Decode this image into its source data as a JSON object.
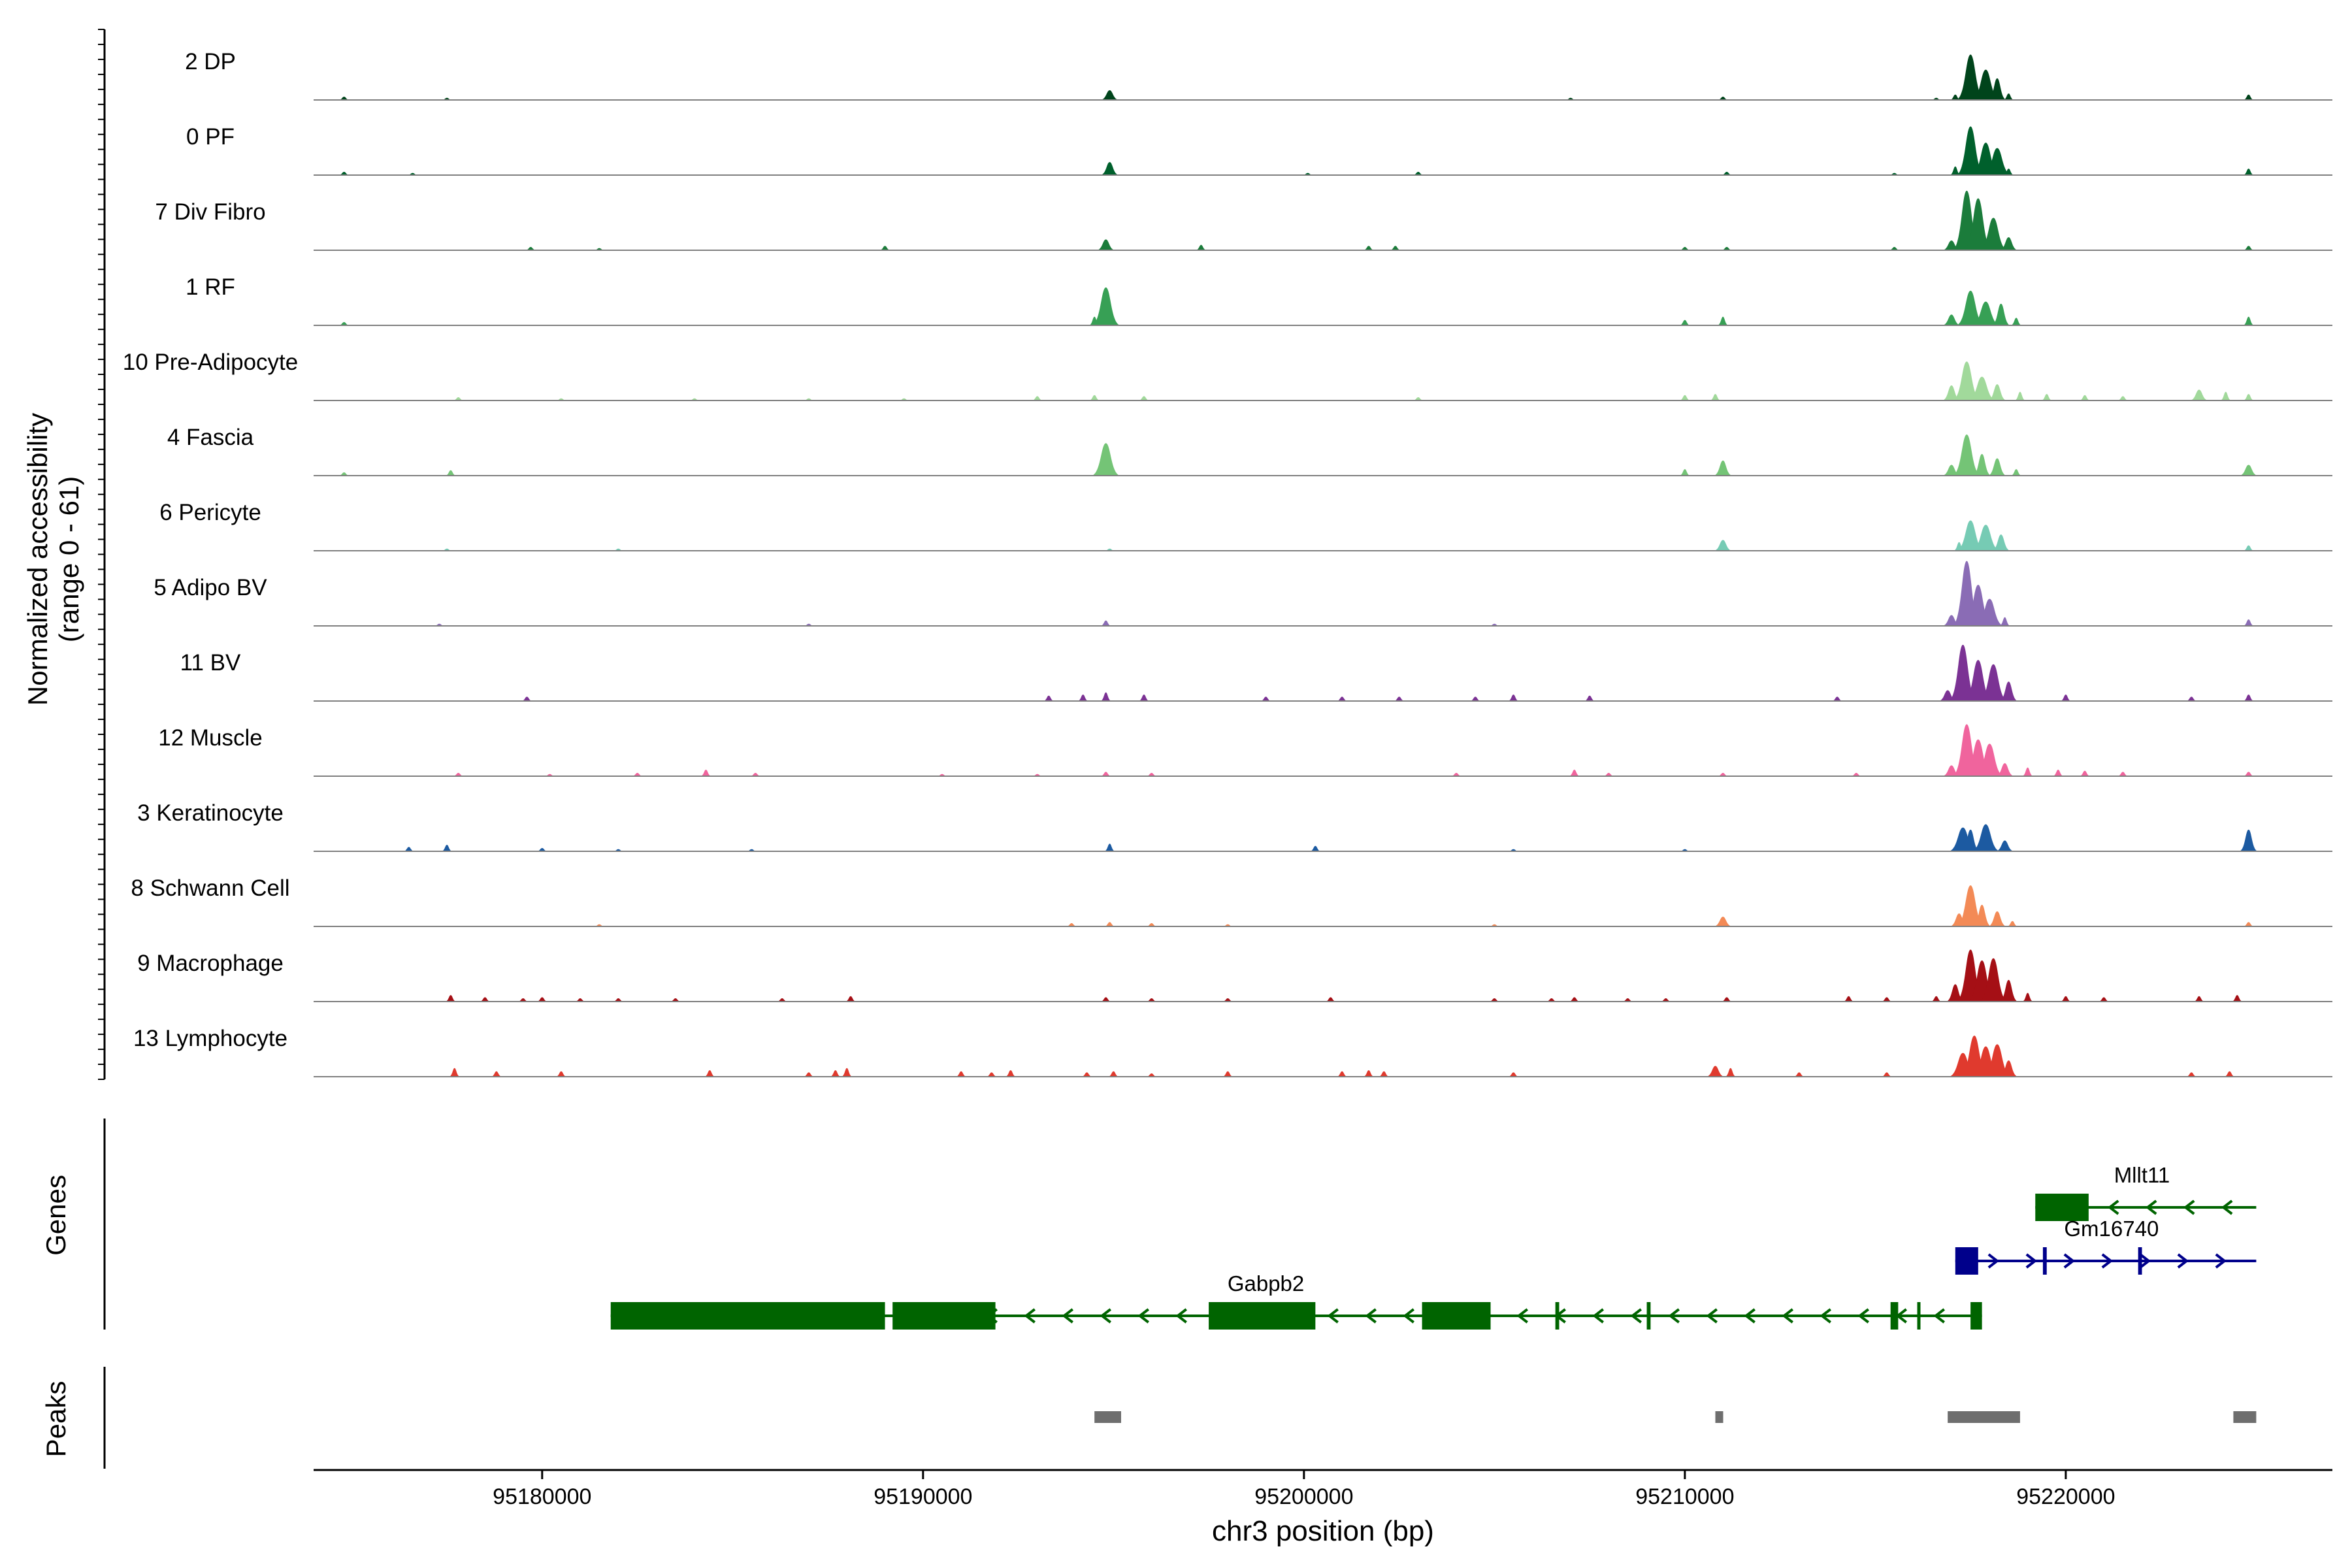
{
  "chart_data": {
    "type": "area",
    "region": {
      "chrom": "chr3",
      "start": 95174000,
      "end": 95227000
    },
    "ylabel_line1": "Normalized accessibility",
    "ylabel_line2": "(range 0 - 61)",
    "ylim": [
      0,
      61
    ],
    "xlabel": "chr3 position (bp)",
    "x_ticks": [
      95180000,
      95190000,
      95200000,
      95210000,
      95220000
    ],
    "x_tick_labels": [
      "95180000",
      "95190000",
      "95200000",
      "95210000",
      "95220000"
    ],
    "genes_label": "Genes",
    "peaks_label": "Peaks",
    "tracks": [
      {
        "name": "2 DP",
        "color": "#00441b",
        "peaks": [
          [
            95174800,
            3
          ],
          [
            95177500,
            2
          ],
          [
            95194900,
            9
          ],
          [
            95207000,
            2
          ],
          [
            95211000,
            3
          ],
          [
            95216600,
            2
          ],
          [
            95217100,
            5
          ],
          [
            95217500,
            42
          ],
          [
            95217900,
            28
          ],
          [
            95218200,
            20
          ],
          [
            95218500,
            6
          ],
          [
            95224800,
            5
          ]
        ]
      },
      {
        "name": "0 PF",
        "color": "#00602c",
        "peaks": [
          [
            95174800,
            3
          ],
          [
            95176600,
            2
          ],
          [
            95194900,
            12
          ],
          [
            95200100,
            2
          ],
          [
            95203000,
            3
          ],
          [
            95211100,
            3
          ],
          [
            95215500,
            2
          ],
          [
            95217100,
            8
          ],
          [
            95217500,
            45
          ],
          [
            95217900,
            30
          ],
          [
            95218200,
            25
          ],
          [
            95218500,
            6
          ],
          [
            95224800,
            6
          ]
        ]
      },
      {
        "name": "7 Div Fibro",
        "color": "#1b7c3b",
        "peaks": [
          [
            95179700,
            3
          ],
          [
            95181500,
            2
          ],
          [
            95189000,
            4
          ],
          [
            95194800,
            10
          ],
          [
            95197300,
            5
          ],
          [
            95201700,
            4
          ],
          [
            95202400,
            4
          ],
          [
            95210000,
            3
          ],
          [
            95211100,
            3
          ],
          [
            95215500,
            3
          ],
          [
            95217000,
            9
          ],
          [
            95217400,
            55
          ],
          [
            95217700,
            48
          ],
          [
            95218100,
            30
          ],
          [
            95218500,
            12
          ],
          [
            95224800,
            4
          ]
        ]
      },
      {
        "name": "1 RF",
        "color": "#37a055",
        "peaks": [
          [
            95174800,
            3
          ],
          [
            95194800,
            35
          ],
          [
            95194500,
            8
          ],
          [
            95210000,
            5
          ],
          [
            95211000,
            8
          ],
          [
            95217000,
            10
          ],
          [
            95217500,
            32
          ],
          [
            95217900,
            22
          ],
          [
            95218300,
            20
          ],
          [
            95218700,
            7
          ],
          [
            95224800,
            8
          ]
        ]
      },
      {
        "name": "10 Pre-Adipocyte",
        "color": "#a1d99b",
        "peaks": [
          [
            95177800,
            3
          ],
          [
            95180500,
            2
          ],
          [
            95184000,
            2
          ],
          [
            95187000,
            2
          ],
          [
            95189500,
            2
          ],
          [
            95193000,
            4
          ],
          [
            95194500,
            5
          ],
          [
            95195800,
            4
          ],
          [
            95203000,
            3
          ],
          [
            95210000,
            5
          ],
          [
            95210800,
            6
          ],
          [
            95217000,
            14
          ],
          [
            95217400,
            36
          ],
          [
            95217800,
            22
          ],
          [
            95218200,
            15
          ],
          [
            95218800,
            8
          ],
          [
            95219500,
            6
          ],
          [
            95220500,
            5
          ],
          [
            95221500,
            4
          ],
          [
            95223500,
            10
          ],
          [
            95224200,
            8
          ],
          [
            95224800,
            6
          ]
        ]
      },
      {
        "name": "4 Fascia",
        "color": "#74c476",
        "peaks": [
          [
            95174800,
            3
          ],
          [
            95177600,
            5
          ],
          [
            95194800,
            30
          ],
          [
            95210000,
            6
          ],
          [
            95211000,
            14
          ],
          [
            95217000,
            10
          ],
          [
            95217400,
            38
          ],
          [
            95217800,
            20
          ],
          [
            95218200,
            16
          ],
          [
            95218700,
            6
          ],
          [
            95224800,
            10
          ]
        ]
      },
      {
        "name": "6 Pericyte",
        "color": "#76cbb4",
        "peaks": [
          [
            95177500,
            2
          ],
          [
            95182000,
            2
          ],
          [
            95194900,
            2
          ],
          [
            95211000,
            10
          ],
          [
            95217200,
            8
          ],
          [
            95217500,
            28
          ],
          [
            95217900,
            24
          ],
          [
            95218300,
            15
          ],
          [
            95224800,
            5
          ]
        ]
      },
      {
        "name": "5 Adipo BV",
        "color": "#8a6cb5",
        "peaks": [
          [
            95177300,
            2
          ],
          [
            95187000,
            2
          ],
          [
            95194800,
            5
          ],
          [
            95205000,
            2
          ],
          [
            95217000,
            10
          ],
          [
            95217400,
            60
          ],
          [
            95217700,
            38
          ],
          [
            95218000,
            25
          ],
          [
            95218400,
            8
          ],
          [
            95224800,
            6
          ]
        ]
      },
      {
        "name": "11 BV",
        "color": "#7b3294",
        "peaks": [
          [
            95179600,
            4
          ],
          [
            95193300,
            5
          ],
          [
            95194200,
            6
          ],
          [
            95194800,
            8
          ],
          [
            95195800,
            6
          ],
          [
            95199000,
            4
          ],
          [
            95201000,
            4
          ],
          [
            95202500,
            4
          ],
          [
            95204500,
            4
          ],
          [
            95205500,
            6
          ],
          [
            95207500,
            5
          ],
          [
            95214000,
            4
          ],
          [
            95216900,
            10
          ],
          [
            95217300,
            52
          ],
          [
            95217700,
            38
          ],
          [
            95218100,
            34
          ],
          [
            95218500,
            18
          ],
          [
            95220000,
            6
          ],
          [
            95223300,
            4
          ],
          [
            95224800,
            6
          ]
        ]
      },
      {
        "name": "12 Muscle",
        "color": "#f0649d",
        "peaks": [
          [
            95177800,
            3
          ],
          [
            95180200,
            2
          ],
          [
            95182500,
            3
          ],
          [
            95184300,
            6
          ],
          [
            95185600,
            3
          ],
          [
            95190500,
            2
          ],
          [
            95193000,
            2
          ],
          [
            95194800,
            4
          ],
          [
            95196000,
            3
          ],
          [
            95204000,
            3
          ],
          [
            95207100,
            6
          ],
          [
            95208000,
            3
          ],
          [
            95211000,
            3
          ],
          [
            95214500,
            3
          ],
          [
            95217000,
            10
          ],
          [
            95217400,
            48
          ],
          [
            95217700,
            34
          ],
          [
            95218000,
            30
          ],
          [
            95218400,
            12
          ],
          [
            95219000,
            8
          ],
          [
            95219800,
            6
          ],
          [
            95220500,
            5
          ],
          [
            95221500,
            4
          ],
          [
            95224800,
            4
          ]
        ]
      },
      {
        "name": "3 Keratinocyte",
        "color": "#1c5aa1",
        "peaks": [
          [
            95176500,
            4
          ],
          [
            95177500,
            6
          ],
          [
            95180000,
            3
          ],
          [
            95182000,
            2
          ],
          [
            95185500,
            2
          ],
          [
            95194900,
            7
          ],
          [
            95200300,
            5
          ],
          [
            95205500,
            2
          ],
          [
            95210000,
            2
          ],
          [
            95217300,
            22
          ],
          [
            95217500,
            20
          ],
          [
            95217900,
            25
          ],
          [
            95218400,
            10
          ],
          [
            95224800,
            20
          ]
        ]
      },
      {
        "name": "8 Schwann Cell",
        "color": "#f38a56",
        "peaks": [
          [
            95181500,
            2
          ],
          [
            95193900,
            3
          ],
          [
            95194900,
            4
          ],
          [
            95196000,
            3
          ],
          [
            95198000,
            2
          ],
          [
            95205000,
            2
          ],
          [
            95211000,
            9
          ],
          [
            95217200,
            12
          ],
          [
            95217500,
            38
          ],
          [
            95217800,
            20
          ],
          [
            95218200,
            14
          ],
          [
            95218600,
            5
          ],
          [
            95224800,
            4
          ]
        ]
      },
      {
        "name": "9 Macrophage",
        "color": "#a50f15",
        "peaks": [
          [
            95177600,
            6
          ],
          [
            95178500,
            4
          ],
          [
            95179500,
            3
          ],
          [
            95180000,
            4
          ],
          [
            95181000,
            3
          ],
          [
            95182000,
            3
          ],
          [
            95183500,
            3
          ],
          [
            95186300,
            3
          ],
          [
            95188100,
            5
          ],
          [
            95194800,
            4
          ],
          [
            95196000,
            3
          ],
          [
            95198000,
            3
          ],
          [
            95200700,
            4
          ],
          [
            95205000,
            3
          ],
          [
            95206500,
            3
          ],
          [
            95207100,
            4
          ],
          [
            95208500,
            3
          ],
          [
            95209500,
            3
          ],
          [
            95211100,
            4
          ],
          [
            95214300,
            5
          ],
          [
            95215300,
            4
          ],
          [
            95216600,
            5
          ],
          [
            95217100,
            16
          ],
          [
            95217500,
            48
          ],
          [
            95217800,
            38
          ],
          [
            95218100,
            40
          ],
          [
            95218500,
            20
          ],
          [
            95219000,
            8
          ],
          [
            95220000,
            5
          ],
          [
            95221000,
            4
          ],
          [
            95223500,
            5
          ],
          [
            95224500,
            6
          ]
        ]
      },
      {
        "name": "13 Lymphocyte",
        "color": "#e03a2e",
        "peaks": [
          [
            95177700,
            8
          ],
          [
            95178800,
            5
          ],
          [
            95180500,
            5
          ],
          [
            95184400,
            6
          ],
          [
            95187000,
            4
          ],
          [
            95187700,
            6
          ],
          [
            95188000,
            8
          ],
          [
            95191000,
            5
          ],
          [
            95191800,
            4
          ],
          [
            95192300,
            6
          ],
          [
            95194300,
            4
          ],
          [
            95195000,
            5
          ],
          [
            95196000,
            3
          ],
          [
            95198000,
            5
          ],
          [
            95201000,
            5
          ],
          [
            95201700,
            6
          ],
          [
            95202100,
            5
          ],
          [
            95205500,
            4
          ],
          [
            95210800,
            10
          ],
          [
            95211200,
            8
          ],
          [
            95213000,
            4
          ],
          [
            95215300,
            4
          ],
          [
            95217300,
            22
          ],
          [
            95217600,
            38
          ],
          [
            95217900,
            28
          ],
          [
            95218200,
            30
          ],
          [
            95218500,
            15
          ],
          [
            95223300,
            4
          ],
          [
            95224300,
            5
          ]
        ]
      }
    ],
    "genes": [
      {
        "name": "Mllt11",
        "strand": "-",
        "color": "#006400",
        "start": 95219200,
        "end": 95225000,
        "row": 0,
        "label_x": 95222000,
        "exons": [
          [
            95219200,
            95220600
          ]
        ]
      },
      {
        "name": "Gm16740",
        "strand": "+",
        "color": "#00008b",
        "start": 95217100,
        "end": 95225000,
        "row": 1,
        "label_x": 95221200,
        "exons": [
          [
            95217100,
            95217700
          ],
          [
            95219400,
            95219500
          ],
          [
            95221900,
            95222000
          ]
        ]
      },
      {
        "name": "Gabpb2",
        "strand": "-",
        "color": "#006400",
        "start": 95181800,
        "end": 95217800,
        "row": 2,
        "label_x": 95199000,
        "exons": [
          [
            95181800,
            95189000
          ],
          [
            95189200,
            95191900
          ],
          [
            95197500,
            95200300
          ],
          [
            95203100,
            95204900
          ],
          [
            95206600,
            95206700
          ],
          [
            95209000,
            95209100
          ],
          [
            95215400,
            95215600
          ],
          [
            95216100,
            95216150
          ],
          [
            95217500,
            95217800
          ]
        ]
      }
    ],
    "peaks": [
      [
        95194500,
        95195200
      ],
      [
        95210800,
        95211000
      ],
      [
        95216900,
        95218800
      ],
      [
        95224400,
        95225000
      ]
    ]
  }
}
